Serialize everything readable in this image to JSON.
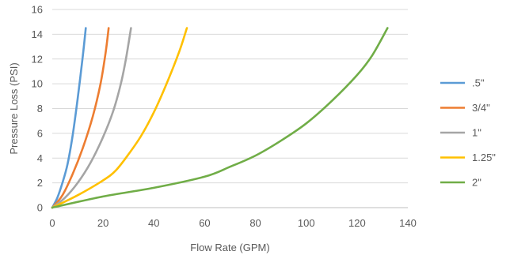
{
  "chart_data": {
    "type": "line",
    "title": "",
    "xlabel": "Flow Rate (GPM)",
    "ylabel": "Pressure Loss (PSI)",
    "xlim": [
      0,
      140
    ],
    "ylim": [
      0,
      16
    ],
    "xticks": [
      0,
      20,
      40,
      60,
      80,
      100,
      120,
      140
    ],
    "yticks": [
      0,
      2,
      4,
      6,
      8,
      10,
      12,
      14,
      16
    ],
    "grid": "horizontal",
    "legend_position": "right",
    "series": [
      {
        "name": ".5\"",
        "color": "#5b9bd5",
        "points": [
          [
            0,
            0
          ],
          [
            2,
            0.8
          ],
          [
            4,
            2.0
          ],
          [
            6,
            3.5
          ],
          [
            8,
            5.8
          ],
          [
            10,
            8.8
          ],
          [
            12,
            12.2
          ],
          [
            13.2,
            14.5
          ]
        ]
      },
      {
        "name": "3/4\"",
        "color": "#ed7d31",
        "points": [
          [
            0,
            0
          ],
          [
            4,
            1.0
          ],
          [
            8,
            2.7
          ],
          [
            12,
            4.8
          ],
          [
            16,
            7.4
          ],
          [
            19,
            10.0
          ],
          [
            21,
            12.5
          ],
          [
            22.2,
            14.5
          ]
        ]
      },
      {
        "name": "1\"",
        "color": "#a5a5a5",
        "points": [
          [
            0,
            0
          ],
          [
            5,
            0.8
          ],
          [
            10,
            2.0
          ],
          [
            15,
            3.6
          ],
          [
            20,
            5.7
          ],
          [
            24,
            7.8
          ],
          [
            27,
            10.0
          ],
          [
            29,
            12.0
          ],
          [
            31,
            14.5
          ]
        ]
      },
      {
        "name": "1.25\"",
        "color": "#ffc000",
        "points": [
          [
            0,
            0
          ],
          [
            10,
            1.0
          ],
          [
            20,
            2.2
          ],
          [
            25,
            3.0
          ],
          [
            30,
            4.3
          ],
          [
            35,
            5.8
          ],
          [
            40,
            7.7
          ],
          [
            45,
            10.0
          ],
          [
            50,
            12.6
          ],
          [
            53,
            14.5
          ]
        ]
      },
      {
        "name": "2\"",
        "color": "#70ad47",
        "points": [
          [
            0,
            0
          ],
          [
            20,
            0.9
          ],
          [
            40,
            1.6
          ],
          [
            60,
            2.5
          ],
          [
            70,
            3.3
          ],
          [
            80,
            4.2
          ],
          [
            90,
            5.4
          ],
          [
            100,
            6.8
          ],
          [
            110,
            8.6
          ],
          [
            120,
            10.7
          ],
          [
            126,
            12.3
          ],
          [
            132,
            14.5
          ]
        ]
      }
    ]
  }
}
